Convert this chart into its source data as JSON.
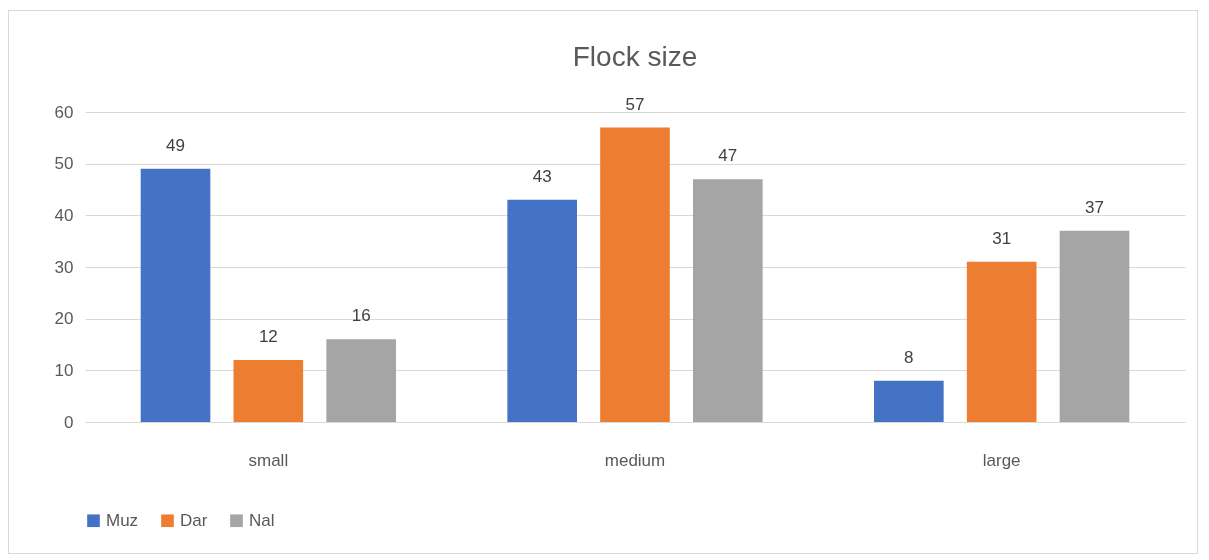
{
  "chart_data": {
    "type": "bar",
    "title": "Flock size",
    "categories": [
      "small",
      "medium",
      "large"
    ],
    "series": [
      {
        "name": "Muz",
        "color": "#4472c4",
        "values": [
          49,
          43,
          8
        ]
      },
      {
        "name": "Dar",
        "color": "#ed7d31",
        "values": [
          12,
          57,
          31
        ]
      },
      {
        "name": "Nal",
        "color": "#a5a5a5",
        "values": [
          16,
          47,
          37
        ]
      }
    ],
    "ylim": [
      0,
      60
    ],
    "yticks": [
      0,
      10,
      20,
      30,
      40,
      50,
      60
    ],
    "grid": "y",
    "legend": "bottom",
    "data_labels": true
  }
}
